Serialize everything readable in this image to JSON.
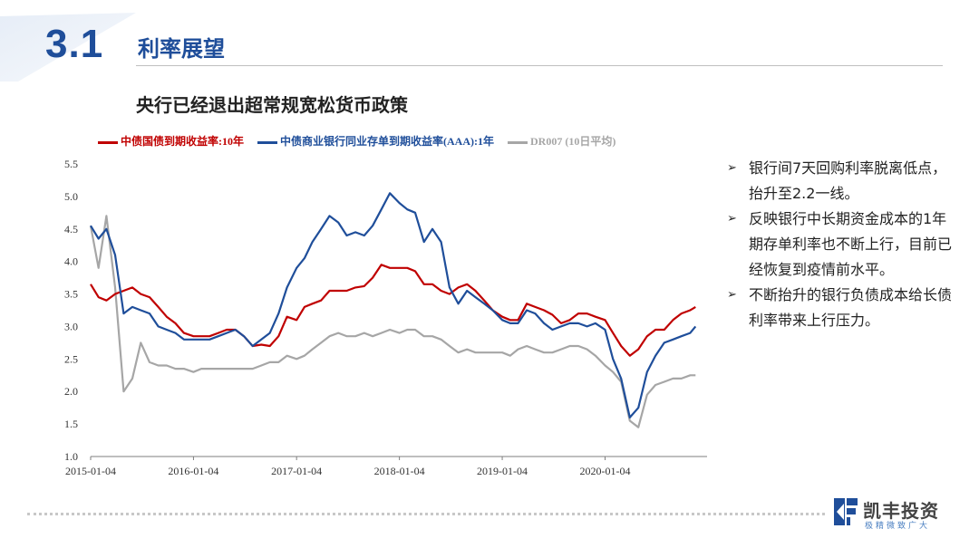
{
  "section": {
    "number": "3.1",
    "title": "利率展望"
  },
  "slide": {
    "subtitle": "央行已经退出超常规宽松货币政策"
  },
  "bullets": [
    {
      "marker": "➢",
      "text": "银行间7天回购利率脱离低点，抬升至2.2一线。"
    },
    {
      "marker": "➢",
      "text": "反映银行中长期资金成本的1年期存单利率也不断上行，目前已经恢复到疫情前水平。"
    },
    {
      "marker": "➢",
      "text": "不断抬升的银行负债成本给长债利率带来上行压力。"
    }
  ],
  "logo": {
    "name": "凯丰投资",
    "tagline": "极精微致广大",
    "color": "#1f4e9a"
  },
  "chart_data": {
    "type": "line",
    "title": "",
    "ylim": [
      1.0,
      5.5
    ],
    "yticks": [
      "1.0",
      "1.5",
      "2.0",
      "2.5",
      "3.0",
      "3.5",
      "4.0",
      "4.5",
      "5.0",
      "5.5"
    ],
    "xlim": [
      "2015-01-04",
      "2020-12-31"
    ],
    "xticks": [
      "2015-01-04",
      "2016-01-04",
      "2017-01-04",
      "2018-01-04",
      "2019-01-04",
      "2020-01-04"
    ],
    "grid": false,
    "legend": "top",
    "series": [
      {
        "name": "中债国债到期收益率:10年",
        "color": "#c00000",
        "points": [
          [
            "2015-01-04",
            3.65
          ],
          [
            "2015-02-01",
            3.45
          ],
          [
            "2015-03-01",
            3.4
          ],
          [
            "2015-04-01",
            3.5
          ],
          [
            "2015-05-01",
            3.55
          ],
          [
            "2015-06-01",
            3.6
          ],
          [
            "2015-07-01",
            3.5
          ],
          [
            "2015-08-01",
            3.45
          ],
          [
            "2015-09-01",
            3.3
          ],
          [
            "2015-10-01",
            3.15
          ],
          [
            "2015-11-01",
            3.05
          ],
          [
            "2015-12-01",
            2.9
          ],
          [
            "2016-01-04",
            2.85
          ],
          [
            "2016-02-01",
            2.85
          ],
          [
            "2016-03-01",
            2.85
          ],
          [
            "2016-04-01",
            2.9
          ],
          [
            "2016-05-01",
            2.95
          ],
          [
            "2016-06-01",
            2.95
          ],
          [
            "2016-07-01",
            2.85
          ],
          [
            "2016-08-01",
            2.7
          ],
          [
            "2016-09-01",
            2.72
          ],
          [
            "2016-10-01",
            2.7
          ],
          [
            "2016-11-01",
            2.85
          ],
          [
            "2016-12-01",
            3.15
          ],
          [
            "2017-01-04",
            3.1
          ],
          [
            "2017-02-01",
            3.3
          ],
          [
            "2017-03-01",
            3.35
          ],
          [
            "2017-04-01",
            3.4
          ],
          [
            "2017-05-01",
            3.55
          ],
          [
            "2017-06-01",
            3.55
          ],
          [
            "2017-07-01",
            3.55
          ],
          [
            "2017-08-01",
            3.6
          ],
          [
            "2017-09-01",
            3.62
          ],
          [
            "2017-10-01",
            3.75
          ],
          [
            "2017-11-01",
            3.95
          ],
          [
            "2017-12-01",
            3.9
          ],
          [
            "2018-01-04",
            3.9
          ],
          [
            "2018-02-01",
            3.9
          ],
          [
            "2018-03-01",
            3.85
          ],
          [
            "2018-04-01",
            3.65
          ],
          [
            "2018-05-01",
            3.65
          ],
          [
            "2018-06-01",
            3.55
          ],
          [
            "2018-07-01",
            3.5
          ],
          [
            "2018-08-01",
            3.6
          ],
          [
            "2018-09-01",
            3.65
          ],
          [
            "2018-10-01",
            3.55
          ],
          [
            "2018-11-01",
            3.4
          ],
          [
            "2018-12-01",
            3.25
          ],
          [
            "2019-01-04",
            3.15
          ],
          [
            "2019-02-01",
            3.1
          ],
          [
            "2019-03-01",
            3.1
          ],
          [
            "2019-04-01",
            3.35
          ],
          [
            "2019-05-01",
            3.3
          ],
          [
            "2019-06-01",
            3.25
          ],
          [
            "2019-07-01",
            3.18
          ],
          [
            "2019-08-01",
            3.05
          ],
          [
            "2019-09-01",
            3.1
          ],
          [
            "2019-10-01",
            3.2
          ],
          [
            "2019-11-01",
            3.2
          ],
          [
            "2019-12-01",
            3.15
          ],
          [
            "2020-01-04",
            3.1
          ],
          [
            "2020-02-01",
            2.9
          ],
          [
            "2020-03-01",
            2.7
          ],
          [
            "2020-04-01",
            2.55
          ],
          [
            "2020-05-01",
            2.65
          ],
          [
            "2020-06-01",
            2.85
          ],
          [
            "2020-07-01",
            2.95
          ],
          [
            "2020-08-01",
            2.95
          ],
          [
            "2020-09-01",
            3.1
          ],
          [
            "2020-10-01",
            3.2
          ],
          [
            "2020-11-01",
            3.25
          ],
          [
            "2020-11-20",
            3.3
          ]
        ]
      },
      {
        "name": "中债商业银行同业存单到期收益率(AAA):1年",
        "color": "#1f4e9a",
        "points": [
          [
            "2015-01-04",
            4.55
          ],
          [
            "2015-02-01",
            4.35
          ],
          [
            "2015-03-01",
            4.5
          ],
          [
            "2015-04-01",
            4.1
          ],
          [
            "2015-05-01",
            3.2
          ],
          [
            "2015-06-01",
            3.3
          ],
          [
            "2015-07-01",
            3.25
          ],
          [
            "2015-08-01",
            3.2
          ],
          [
            "2015-09-01",
            3.0
          ],
          [
            "2015-10-01",
            2.95
          ],
          [
            "2015-11-01",
            2.9
          ],
          [
            "2015-12-01",
            2.8
          ],
          [
            "2016-01-04",
            2.8
          ],
          [
            "2016-02-01",
            2.8
          ],
          [
            "2016-03-01",
            2.8
          ],
          [
            "2016-04-01",
            2.85
          ],
          [
            "2016-05-01",
            2.9
          ],
          [
            "2016-06-01",
            2.95
          ],
          [
            "2016-07-01",
            2.85
          ],
          [
            "2016-08-01",
            2.7
          ],
          [
            "2016-09-01",
            2.8
          ],
          [
            "2016-10-01",
            2.9
          ],
          [
            "2016-11-01",
            3.2
          ],
          [
            "2016-12-01",
            3.6
          ],
          [
            "2017-01-04",
            3.9
          ],
          [
            "2017-02-01",
            4.05
          ],
          [
            "2017-03-01",
            4.3
          ],
          [
            "2017-04-01",
            4.5
          ],
          [
            "2017-05-01",
            4.7
          ],
          [
            "2017-06-01",
            4.6
          ],
          [
            "2017-07-01",
            4.4
          ],
          [
            "2017-08-01",
            4.45
          ],
          [
            "2017-09-01",
            4.4
          ],
          [
            "2017-10-01",
            4.55
          ],
          [
            "2017-11-01",
            4.8
          ],
          [
            "2017-12-01",
            5.05
          ],
          [
            "2018-01-04",
            4.9
          ],
          [
            "2018-02-01",
            4.8
          ],
          [
            "2018-03-01",
            4.75
          ],
          [
            "2018-04-01",
            4.3
          ],
          [
            "2018-05-01",
            4.5
          ],
          [
            "2018-06-01",
            4.3
          ],
          [
            "2018-07-01",
            3.6
          ],
          [
            "2018-08-01",
            3.35
          ],
          [
            "2018-09-01",
            3.55
          ],
          [
            "2018-10-01",
            3.45
          ],
          [
            "2018-11-01",
            3.35
          ],
          [
            "2018-12-01",
            3.25
          ],
          [
            "2019-01-04",
            3.1
          ],
          [
            "2019-02-01",
            3.05
          ],
          [
            "2019-03-01",
            3.05
          ],
          [
            "2019-04-01",
            3.25
          ],
          [
            "2019-05-01",
            3.2
          ],
          [
            "2019-06-01",
            3.05
          ],
          [
            "2019-07-01",
            2.95
          ],
          [
            "2019-08-01",
            3.0
          ],
          [
            "2019-09-01",
            3.05
          ],
          [
            "2019-10-01",
            3.05
          ],
          [
            "2019-11-01",
            3.0
          ],
          [
            "2019-12-01",
            3.05
          ],
          [
            "2020-01-04",
            2.95
          ],
          [
            "2020-02-01",
            2.5
          ],
          [
            "2020-03-01",
            2.2
          ],
          [
            "2020-04-01",
            1.6
          ],
          [
            "2020-05-01",
            1.75
          ],
          [
            "2020-06-01",
            2.3
          ],
          [
            "2020-07-01",
            2.55
          ],
          [
            "2020-08-01",
            2.75
          ],
          [
            "2020-09-01",
            2.8
          ],
          [
            "2020-10-01",
            2.85
          ],
          [
            "2020-11-01",
            2.9
          ],
          [
            "2020-11-20",
            3.0
          ]
        ]
      },
      {
        "name": "DR007 (10日平均)",
        "color": "#a6a6a6",
        "points": [
          [
            "2015-01-04",
            4.55
          ],
          [
            "2015-02-01",
            3.9
          ],
          [
            "2015-03-01",
            4.7
          ],
          [
            "2015-04-01",
            3.6
          ],
          [
            "2015-05-01",
            2.0
          ],
          [
            "2015-06-01",
            2.2
          ],
          [
            "2015-07-01",
            2.75
          ],
          [
            "2015-08-01",
            2.45
          ],
          [
            "2015-09-01",
            2.4
          ],
          [
            "2015-10-01",
            2.4
          ],
          [
            "2015-11-01",
            2.35
          ],
          [
            "2015-12-01",
            2.35
          ],
          [
            "2016-01-04",
            2.3
          ],
          [
            "2016-02-01",
            2.35
          ],
          [
            "2016-03-01",
            2.35
          ],
          [
            "2016-04-01",
            2.35
          ],
          [
            "2016-05-01",
            2.35
          ],
          [
            "2016-06-01",
            2.35
          ],
          [
            "2016-07-01",
            2.35
          ],
          [
            "2016-08-01",
            2.35
          ],
          [
            "2016-09-01",
            2.4
          ],
          [
            "2016-10-01",
            2.45
          ],
          [
            "2016-11-01",
            2.45
          ],
          [
            "2016-12-01",
            2.55
          ],
          [
            "2017-01-04",
            2.5
          ],
          [
            "2017-02-01",
            2.55
          ],
          [
            "2017-03-01",
            2.65
          ],
          [
            "2017-04-01",
            2.75
          ],
          [
            "2017-05-01",
            2.85
          ],
          [
            "2017-06-01",
            2.9
          ],
          [
            "2017-07-01",
            2.85
          ],
          [
            "2017-08-01",
            2.85
          ],
          [
            "2017-09-01",
            2.9
          ],
          [
            "2017-10-01",
            2.85
          ],
          [
            "2017-11-01",
            2.9
          ],
          [
            "2017-12-01",
            2.95
          ],
          [
            "2018-01-04",
            2.9
          ],
          [
            "2018-02-01",
            2.95
          ],
          [
            "2018-03-01",
            2.95
          ],
          [
            "2018-04-01",
            2.85
          ],
          [
            "2018-05-01",
            2.85
          ],
          [
            "2018-06-01",
            2.8
          ],
          [
            "2018-07-01",
            2.7
          ],
          [
            "2018-08-01",
            2.6
          ],
          [
            "2018-09-01",
            2.65
          ],
          [
            "2018-10-01",
            2.6
          ],
          [
            "2018-11-01",
            2.6
          ],
          [
            "2018-12-01",
            2.6
          ],
          [
            "2019-01-04",
            2.6
          ],
          [
            "2019-02-01",
            2.55
          ],
          [
            "2019-03-01",
            2.65
          ],
          [
            "2019-04-01",
            2.7
          ],
          [
            "2019-05-01",
            2.65
          ],
          [
            "2019-06-01",
            2.6
          ],
          [
            "2019-07-01",
            2.6
          ],
          [
            "2019-08-01",
            2.65
          ],
          [
            "2019-09-01",
            2.7
          ],
          [
            "2019-10-01",
            2.7
          ],
          [
            "2019-11-01",
            2.65
          ],
          [
            "2019-12-01",
            2.55
          ],
          [
            "2020-01-04",
            2.4
          ],
          [
            "2020-02-01",
            2.3
          ],
          [
            "2020-03-01",
            2.15
          ],
          [
            "2020-04-01",
            1.55
          ],
          [
            "2020-05-01",
            1.45
          ],
          [
            "2020-06-01",
            1.95
          ],
          [
            "2020-07-01",
            2.1
          ],
          [
            "2020-08-01",
            2.15
          ],
          [
            "2020-09-01",
            2.2
          ],
          [
            "2020-10-01",
            2.2
          ],
          [
            "2020-11-01",
            2.25
          ],
          [
            "2020-11-20",
            2.25
          ]
        ]
      }
    ]
  }
}
